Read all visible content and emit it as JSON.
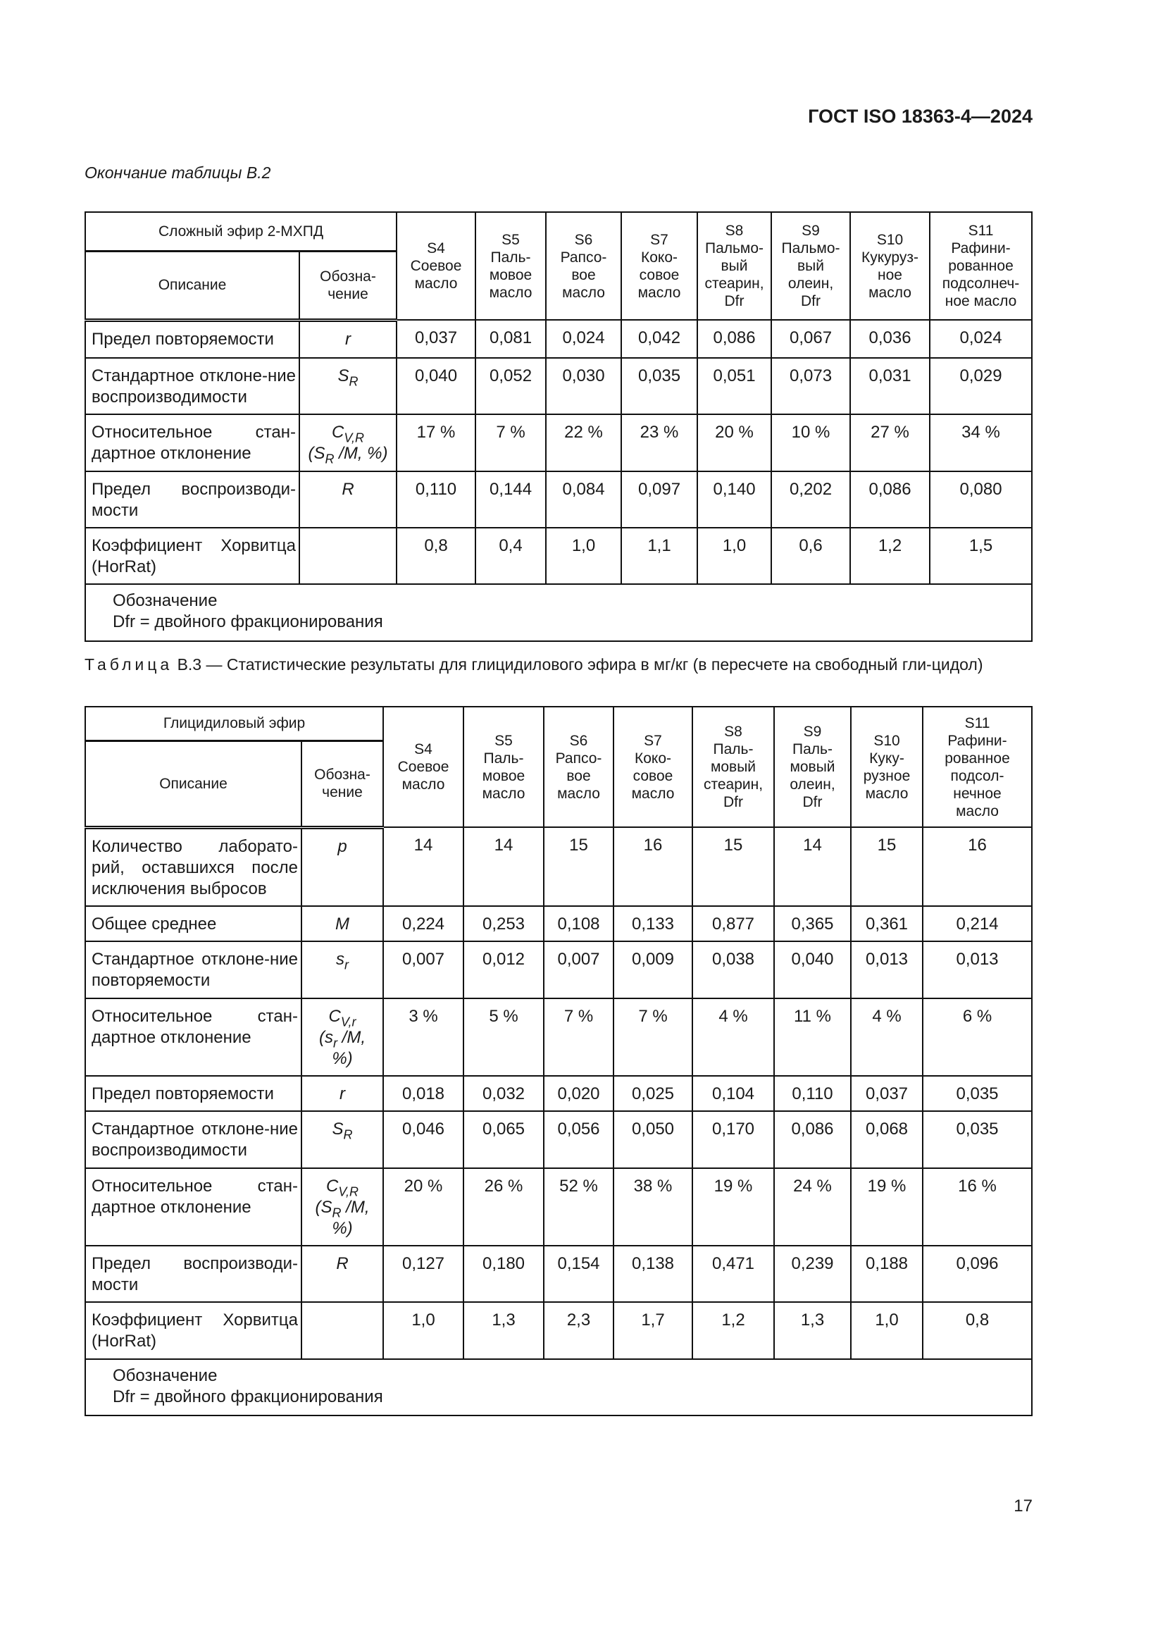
{
  "header": {
    "doc_id": "ГОСТ ISO 18363-4—2024"
  },
  "table_b2": {
    "continuation": "Окончание таблицы В.2",
    "group_title": "Сложный эфир 2-МХПД",
    "col_desc": "Описание",
    "col_sym": "Обозна-\nчение",
    "samples": [
      "S4\nСоевое\nмасло",
      "S5\nПаль-\nмовое\nмасло",
      "S6\nРапсо-\nвое\nмасло",
      "S7\nКоко-\nсовое\nмасло",
      "S8\nПальмо-\nвый\nстеарин,\nDfr",
      "S9\nПальмо-\nвый\nолеин,\nDfr",
      "S10\nКукуруз-\nное\nмасло",
      "S11\nРафини-\nрованное\nподсолнеч-\nное масло"
    ],
    "rows": [
      {
        "desc": "Предел повторяемости",
        "sym": [
          {
            "t": "r"
          }
        ],
        "values": [
          "0,037",
          "0,081",
          "0,024",
          "0,042",
          "0,086",
          "0,067",
          "0,036",
          "0,024"
        ]
      },
      {
        "desc": "Стандартное отклоне-ние воспроизводимости",
        "sym": [
          {
            "t": "S"
          },
          {
            "s": "R"
          }
        ],
        "values": [
          "0,040",
          "0,052",
          "0,030",
          "0,035",
          "0,051",
          "0,073",
          "0,031",
          "0,029"
        ]
      },
      {
        "desc": "Относительное стан-дартное отклонение",
        "sym": [
          {
            "t": "C"
          },
          {
            "s": "V,R"
          },
          {
            "br": 1
          },
          {
            "t": "(S"
          },
          {
            "s": "R"
          },
          {
            "t": " /M, %)"
          }
        ],
        "values": [
          "17 %",
          "7 %",
          "22 %",
          "23 %",
          "20 %",
          "10 %",
          "27 %",
          "34 %"
        ]
      },
      {
        "desc": "Предел воспроизводи-мости",
        "sym": [
          {
            "t": "R"
          }
        ],
        "values": [
          "0,110",
          "0,144",
          "0,084",
          "0,097",
          "0,140",
          "0,202",
          "0,086",
          "0,080"
        ]
      },
      {
        "desc": "Коэффициент Хорвитца (HorRat)",
        "sym": [],
        "values": [
          "0,8",
          "0,4",
          "1,0",
          "1,1",
          "1,0",
          "0,6",
          "1,2",
          "1,5"
        ]
      }
    ],
    "note": [
      "Обозначение",
      "Dfr = двойного фракционирования"
    ]
  },
  "table_b3": {
    "caption_label": "Таблица",
    "caption_text": " В.3 — Статистические результаты для глицидилового эфира в мг/кг (в пересчете на свободный гли-цидол)",
    "group_title": "Глицидиловый эфир",
    "col_desc": "Описание",
    "col_sym": "Обозна-\nчение",
    "samples": [
      "S4\nСоевое\nмасло",
      "S5\nПаль-\nмовое\nмасло",
      "S6\nРапсо-\nвое\nмасло",
      "S7\nКоко-\nсовое\nмасло",
      "S8\nПаль-\nмовый\nстеарин,\nDfr",
      "S9\nПаль-\nмовый\nолеин,\nDfr",
      "S10\nКуку-\nрузное\nмасло",
      "S11\nРафини-\nрованное\nподсол-\nнечное\nмасло"
    ],
    "rows": [
      {
        "desc": "Количество лаборато-рий, оставшихся после исключения выбросов",
        "sym": [
          {
            "t": "p"
          }
        ],
        "values": [
          "14",
          "14",
          "15",
          "16",
          "15",
          "14",
          "15",
          "16"
        ]
      },
      {
        "desc": "Общее среднее",
        "sym": [
          {
            "t": "M"
          }
        ],
        "values": [
          "0,224",
          "0,253",
          "0,108",
          "0,133",
          "0,877",
          "0,365",
          "0,361",
          "0,214"
        ]
      },
      {
        "desc": "Стандартное отклоне-ние повторяемости",
        "sym": [
          {
            "t": "s"
          },
          {
            "s": "r"
          }
        ],
        "values": [
          "0,007",
          "0,012",
          "0,007",
          "0,009",
          "0,038",
          "0,040",
          "0,013",
          "0,013"
        ]
      },
      {
        "desc": "Относительное стан-дартное отклонение",
        "sym": [
          {
            "t": "C"
          },
          {
            "s": "V,r"
          },
          {
            "br": 1
          },
          {
            "t": "(s"
          },
          {
            "s": "r"
          },
          {
            "t": " /M,"
          },
          {
            "br": 1
          },
          {
            "t": "%)"
          }
        ],
        "values": [
          "3 %",
          "5 %",
          "7 %",
          "7 %",
          "4 %",
          "11 %",
          "4 %",
          "6 %"
        ]
      },
      {
        "desc": "Предел повторяемости",
        "sym": [
          {
            "t": "r"
          }
        ],
        "values": [
          "0,018",
          "0,032",
          "0,020",
          "0,025",
          "0,104",
          "0,110",
          "0,037",
          "0,035"
        ]
      },
      {
        "desc": "Стандартное отклоне-ние воспроизводимости",
        "sym": [
          {
            "t": "S"
          },
          {
            "s": "R"
          }
        ],
        "values": [
          "0,046",
          "0,065",
          "0,056",
          "0,050",
          "0,170",
          "0,086",
          "0,068",
          "0,035"
        ]
      },
      {
        "desc": "Относительное стан-дартное отклонение",
        "sym": [
          {
            "t": "C"
          },
          {
            "s": "V,R"
          },
          {
            "br": 1
          },
          {
            "t": "(S"
          },
          {
            "s": "R"
          },
          {
            "t": " /M,"
          },
          {
            "br": 1
          },
          {
            "t": "%)"
          }
        ],
        "values": [
          "20 %",
          "26 %",
          "52 %",
          "38 %",
          "19 %",
          "24 %",
          "19 %",
          "16 %"
        ]
      },
      {
        "desc": "Предел воспроизводи-мости",
        "sym": [
          {
            "t": "R"
          }
        ],
        "values": [
          "0,127",
          "0,180",
          "0,154",
          "0,138",
          "0,471",
          "0,239",
          "0,188",
          "0,096"
        ]
      },
      {
        "desc": "Коэффициент Хорвитца (HorRat)",
        "sym": [],
        "values": [
          "1,0",
          "1,3",
          "2,3",
          "1,7",
          "1,2",
          "1,3",
          "1,0",
          "0,8"
        ]
      }
    ],
    "note": [
      "Обозначение",
      "Dfr = двойного фракционирования"
    ]
  },
  "footer": {
    "page_number": "17"
  }
}
